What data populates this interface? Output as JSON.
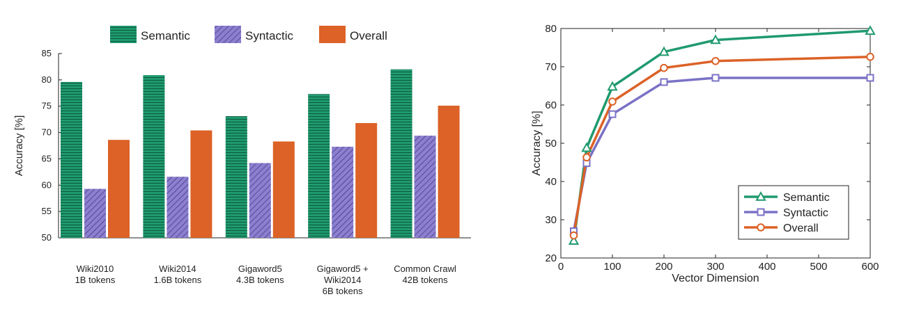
{
  "chart_data": [
    {
      "type": "bar",
      "ylabel": "Accuracy [%]",
      "ylim": [
        50,
        85
      ],
      "yticks": [
        50,
        55,
        60,
        65,
        70,
        75,
        80,
        85
      ],
      "categories": [
        [
          "Wiki2010",
          "1B tokens"
        ],
        [
          "Wiki2014",
          "1.6B tokens"
        ],
        [
          "Gigaword5",
          "4.3B tokens"
        ],
        [
          "Gigaword5 +",
          "Wiki2014",
          "6B tokens"
        ],
        [
          "Common Crawl",
          "42B tokens"
        ]
      ],
      "legend_position": "top",
      "series": [
        {
          "name": "Semantic",
          "color": "#1f9a6e",
          "pattern": "horizontal-lines",
          "values": [
            79.6,
            80.9,
            73.1,
            77.3,
            82.0
          ]
        },
        {
          "name": "Syntactic",
          "color": "#8c7fd0",
          "pattern": "diagonal-hatch",
          "values": [
            59.3,
            61.6,
            64.2,
            67.3,
            69.4
          ]
        },
        {
          "name": "Overall",
          "color": "#dc6227",
          "pattern": "solid",
          "values": [
            68.6,
            70.4,
            68.3,
            71.8,
            75.1
          ]
        }
      ]
    },
    {
      "type": "line",
      "xlabel": "Vector Dimension",
      "ylabel": "Accuracy [%]",
      "xlim": [
        0,
        600
      ],
      "ylim": [
        20,
        80
      ],
      "xticks": [
        0,
        100,
        200,
        300,
        400,
        500,
        600
      ],
      "yticks": [
        20,
        30,
        40,
        50,
        60,
        70,
        80
      ],
      "legend_position": "lower-right",
      "x": [
        25,
        50,
        100,
        200,
        300,
        600
      ],
      "series": [
        {
          "name": "Semantic",
          "color": "#1f9a6e",
          "marker": "triangle",
          "values": [
            24.5,
            48.8,
            64.8,
            73.9,
            77.0,
            79.4
          ]
        },
        {
          "name": "Syntactic",
          "color": "#7a72c6",
          "marker": "square",
          "values": [
            27.0,
            44.8,
            57.6,
            66.0,
            67.1,
            67.1
          ]
        },
        {
          "name": "Overall",
          "color": "#dc6227",
          "marker": "circle",
          "values": [
            25.9,
            46.3,
            60.9,
            69.7,
            71.5,
            72.6
          ]
        }
      ]
    }
  ]
}
